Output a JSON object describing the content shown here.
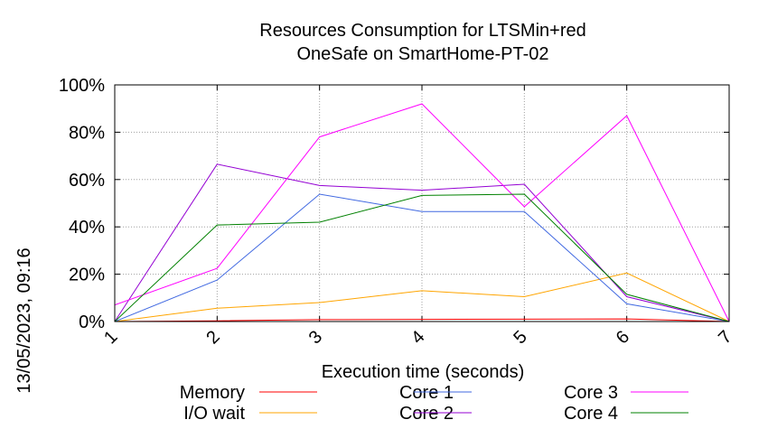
{
  "chart_data": {
    "type": "line",
    "title_line1": "Resources Consumption for LTSMin+red",
    "title_line2": "OneSafe on SmartHome-PT-02",
    "xlabel": "Execution time (seconds)",
    "ylabel": "",
    "x": [
      1,
      2,
      3,
      4,
      5,
      6,
      7
    ],
    "xlim": [
      1,
      7
    ],
    "ylim": [
      0,
      100
    ],
    "y_ticks": [
      "0%",
      "20%",
      "40%",
      "60%",
      "80%",
      "100%"
    ],
    "x_ticks": [
      "1",
      "2",
      "3",
      "4",
      "5",
      "6",
      "7"
    ],
    "grid": true,
    "legend_position": "bottom",
    "series": [
      {
        "name": "Memory",
        "color": "#ff0000",
        "values": [
          0,
          0.3,
          0.8,
          0.9,
          1.0,
          1.1,
          0
        ]
      },
      {
        "name": "I/O wait",
        "color": "#ffa500",
        "values": [
          0,
          5.6,
          8.0,
          13.0,
          10.5,
          20.5,
          0
        ]
      },
      {
        "name": "Core 1",
        "color": "#4169e1",
        "values": [
          0,
          17.5,
          53.8,
          46.5,
          46.5,
          7.5,
          0
        ]
      },
      {
        "name": "Core 2",
        "color": "#9400d3",
        "values": [
          0,
          66.5,
          57.5,
          55.5,
          58.0,
          10.5,
          0
        ]
      },
      {
        "name": "Core 3",
        "color": "#ff00ff",
        "values": [
          7.0,
          22.5,
          78.0,
          92.0,
          48.5,
          87.0,
          0
        ]
      },
      {
        "name": "Core 4",
        "color": "#008000",
        "values": [
          0,
          40.8,
          42.0,
          53.3,
          53.8,
          11.5,
          0
        ]
      }
    ]
  },
  "timestamp": "13/05/2023, 09:16"
}
